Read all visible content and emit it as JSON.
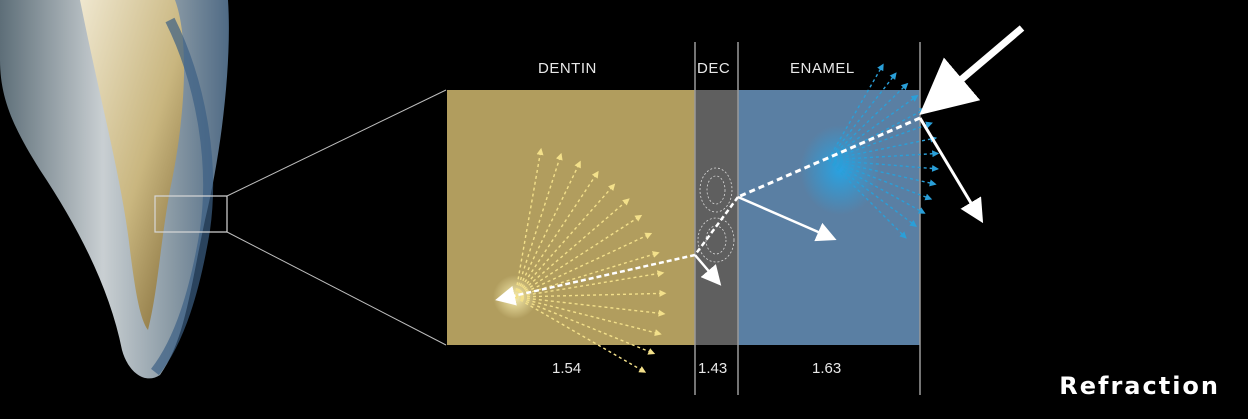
{
  "title": "Refraction",
  "layers": [
    {
      "name": "DENTIN",
      "index": "1.54",
      "color": "#b19d5e"
    },
    {
      "name": "DEC",
      "index": "1.43",
      "color": "#5f5f5f"
    },
    {
      "name": "ENAMEL",
      "index": "1.63",
      "color": "#5a7fa3"
    }
  ],
  "colors": {
    "background": "#000000",
    "ray": "#ffffff",
    "dentin_scatter": "#f3e08a",
    "enamel_scatter": "#2a9fd8"
  }
}
